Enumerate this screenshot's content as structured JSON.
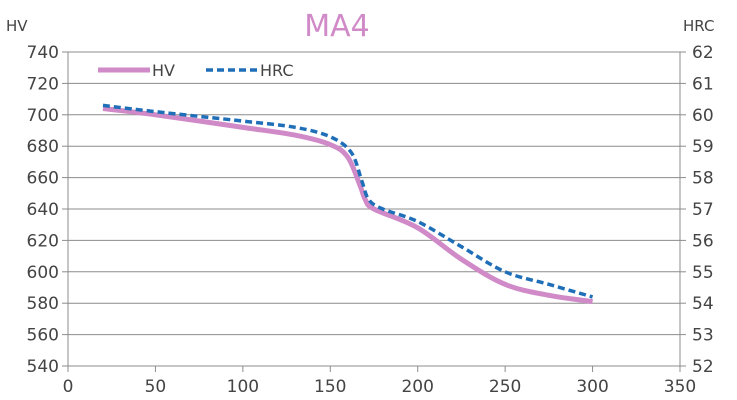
{
  "chart_data": {
    "type": "line",
    "title": "MA4",
    "title_color": "#d08ac8",
    "left_axis": {
      "label": "HV",
      "min": 540,
      "max": 740,
      "step": 20
    },
    "right_axis": {
      "label": "HRC",
      "min": 52,
      "max": 62,
      "step": 1
    },
    "x_axis": {
      "min": 0,
      "max": 350,
      "step": 50
    },
    "grid": "horizontal",
    "legend_position": "top-left",
    "series": [
      {
        "name": "HV",
        "axis": "left",
        "color": "#d08ac8",
        "style": "solid",
        "points": [
          {
            "x": 20,
            "y": 704
          },
          {
            "x": 50,
            "y": 700
          },
          {
            "x": 100,
            "y": 692
          },
          {
            "x": 130,
            "y": 687
          },
          {
            "x": 150,
            "y": 681
          },
          {
            "x": 160,
            "y": 673
          },
          {
            "x": 167,
            "y": 655
          },
          {
            "x": 170,
            "y": 646
          },
          {
            "x": 175,
            "y": 640
          },
          {
            "x": 200,
            "y": 628
          },
          {
            "x": 225,
            "y": 608
          },
          {
            "x": 250,
            "y": 592
          },
          {
            "x": 275,
            "y": 585
          },
          {
            "x": 300,
            "y": 581
          }
        ]
      },
      {
        "name": "HRC",
        "axis": "right",
        "color": "#1f6eb8",
        "style": "dashed",
        "points": [
          {
            "x": 20,
            "y": 60.3
          },
          {
            "x": 50,
            "y": 60.1
          },
          {
            "x": 100,
            "y": 59.8
          },
          {
            "x": 130,
            "y": 59.6
          },
          {
            "x": 150,
            "y": 59.3
          },
          {
            "x": 162,
            "y": 58.8
          },
          {
            "x": 168,
            "y": 57.9
          },
          {
            "x": 172,
            "y": 57.3
          },
          {
            "x": 180,
            "y": 57.0
          },
          {
            "x": 200,
            "y": 56.6
          },
          {
            "x": 225,
            "y": 55.8
          },
          {
            "x": 250,
            "y": 55.0
          },
          {
            "x": 275,
            "y": 54.6
          },
          {
            "x": 300,
            "y": 54.2
          }
        ]
      }
    ]
  }
}
